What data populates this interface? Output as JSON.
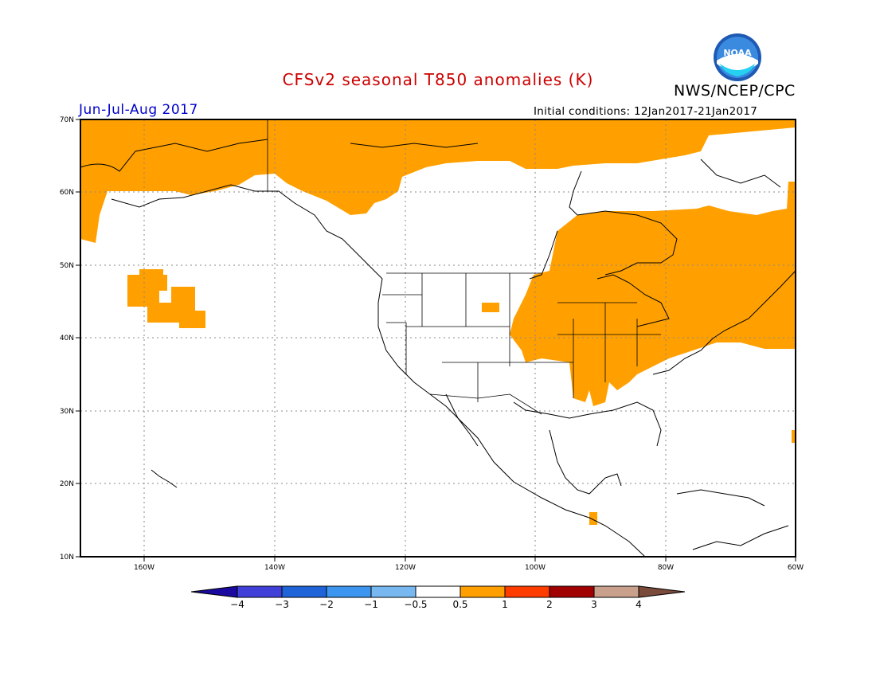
{
  "title": "CFSv2 seasonal T850 anomalies (K)",
  "organization": "NWS/NCEP/CPC",
  "logo_text": "NOAA",
  "period": "Jun-Jul-Aug 2017",
  "initial_conditions": "Initial conditions: 12Jan2017-21Jan2017",
  "colors": {
    "title": "#cc0000",
    "period": "#0000cc",
    "anomaly_fill": "#ffa000",
    "ocean": "#ffffff",
    "coast": "#000000",
    "grid": "#888888"
  },
  "map": {
    "projection": "lat-lon",
    "lon_range": [
      -172,
      -60
    ],
    "lat_range": [
      10,
      70
    ],
    "lat_ticks": [
      "10N",
      "20N",
      "30N",
      "40N",
      "50N",
      "60N",
      "70N"
    ],
    "lon_ticks": [
      "160W",
      "140W",
      "120W",
      "100W",
      "80W",
      "60W"
    ],
    "gridlines": "dotted"
  },
  "legend": {
    "labels": [
      "−4",
      "−3",
      "−2",
      "−1",
      "−0.5",
      "0.5",
      "1",
      "2",
      "3",
      "4"
    ],
    "colors": [
      "#1a0aa0",
      "#4040d8",
      "#1e64d8",
      "#3c96f0",
      "#78b8f0",
      "#ffffff",
      "#ffa000",
      "#ff3c00",
      "#a00000",
      "#c8a08c",
      "#7a4a3a",
      "#3a0a8a"
    ]
  }
}
